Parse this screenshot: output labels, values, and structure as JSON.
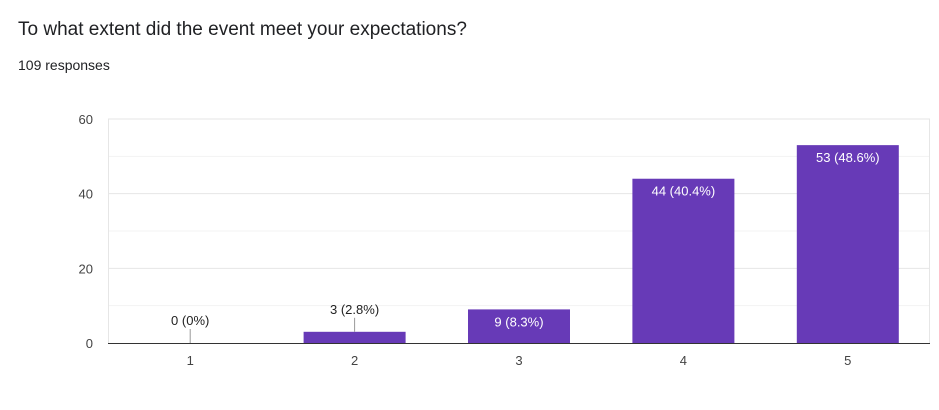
{
  "form": {
    "question": "To what extent did the event meet your expectations?",
    "responses": "109 responses"
  },
  "chart_data": {
    "type": "bar",
    "categories": [
      "1",
      "2",
      "3",
      "4",
      "5"
    ],
    "values": [
      0,
      3,
      9,
      44,
      53
    ],
    "data_labels": [
      "0 (0%)",
      "3 (2.8%)",
      "9 (8.3%)",
      "44 (40.4%)",
      "53 (48.6%)"
    ],
    "y_ticks": [
      0,
      20,
      40,
      60
    ],
    "ylim": [
      0,
      60
    ],
    "grid": true,
    "title": "",
    "xlabel": "",
    "ylabel": "",
    "bar_color": "#673ab7"
  }
}
